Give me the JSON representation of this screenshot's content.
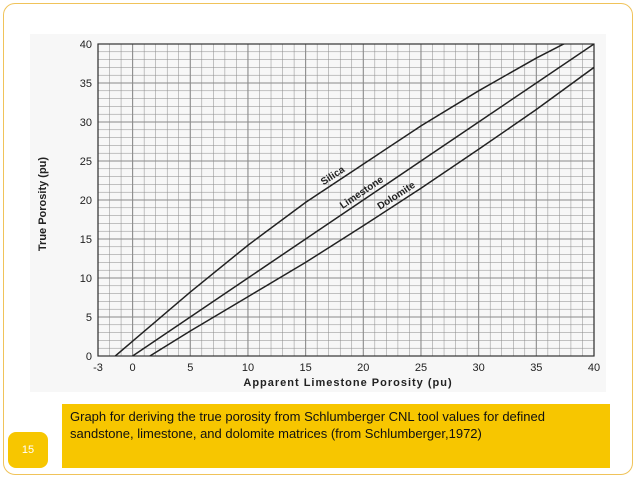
{
  "slide_number": "15",
  "caption": "Graph for deriving the true porosity from Schlumberger CNL tool values for defined sandstone, limestone, and dolomite matrices (from Schlumberger,1972)",
  "colors": {
    "accent": "#f7c600",
    "line": "#222222",
    "grid": "#8a8a8a"
  },
  "chart_data": {
    "type": "line",
    "xlabel": "Apparent Limestone Porosity (pu)",
    "ylabel": "True Porosity (pu)",
    "xlim": [
      -3,
      40
    ],
    "ylim": [
      0,
      40
    ],
    "x_ticks": [
      -3,
      0,
      5,
      10,
      15,
      20,
      25,
      30,
      35,
      40
    ],
    "y_ticks": [
      0,
      5,
      10,
      15,
      20,
      25,
      30,
      35,
      40
    ],
    "grid": true,
    "series": [
      {
        "name": "Silica",
        "x": [
          -1.5,
          0,
          5,
          10,
          15,
          20,
          25,
          30,
          35,
          40
        ],
        "y": [
          0,
          1.9,
          8.2,
          14.2,
          19.7,
          24.6,
          29.5,
          34.0,
          38.2,
          42.0
        ],
        "label_at": 17.5
      },
      {
        "name": "Limestone",
        "x": [
          0,
          5,
          10,
          15,
          20,
          25,
          30,
          35,
          40
        ],
        "y": [
          0,
          5,
          10,
          15,
          20,
          25,
          30,
          35,
          40
        ],
        "label_at": 20
      },
      {
        "name": "Dolomite",
        "x": [
          1.5,
          5,
          10,
          15,
          20,
          25,
          30,
          35,
          40
        ],
        "y": [
          0,
          3.2,
          7.6,
          12.0,
          16.7,
          21.5,
          26.5,
          31.6,
          37.0
        ],
        "label_at": 23
      }
    ]
  }
}
